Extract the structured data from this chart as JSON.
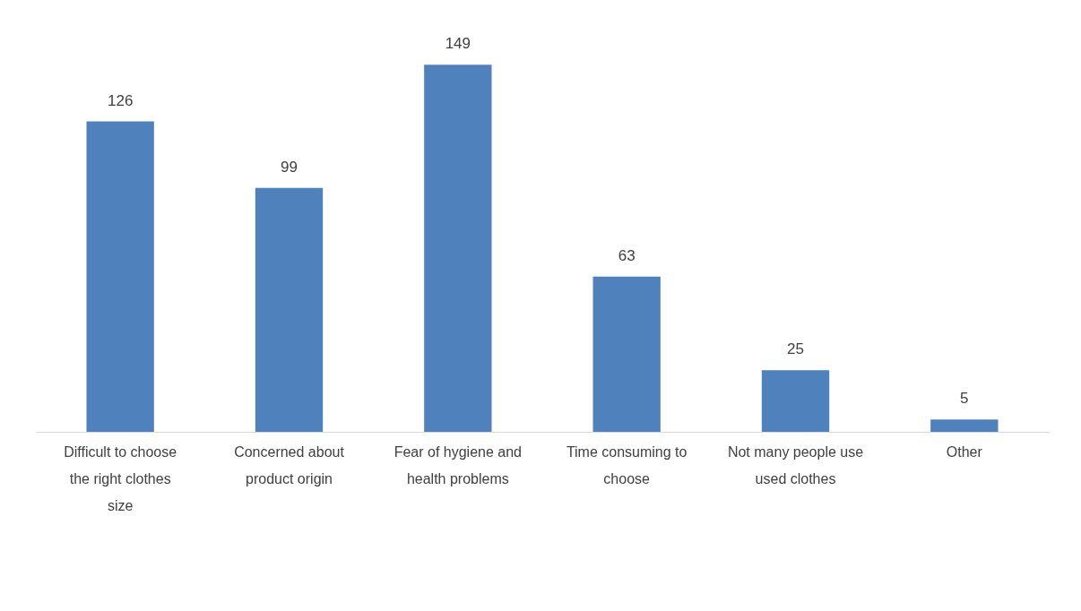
{
  "chart_data": {
    "type": "bar",
    "categories": [
      "Difficult to choose the right clothes size",
      "Concerned about product origin",
      "Fear of hygiene and health problems",
      "Time consuming to choose",
      "Not many people use used clothes",
      "Other"
    ],
    "values": [
      126,
      99,
      149,
      63,
      25,
      5
    ],
    "color": "#4f81bd",
    "data_labels": true,
    "grid": false
  }
}
